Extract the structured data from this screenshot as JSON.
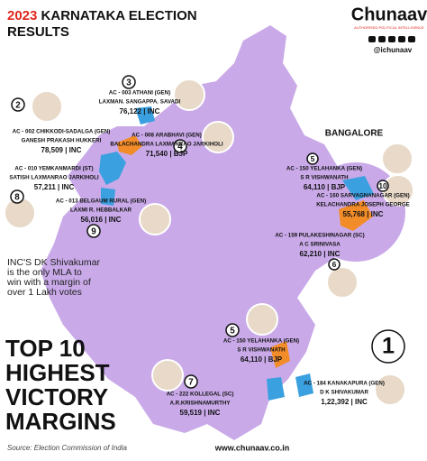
{
  "header": {
    "title_year": "2023",
    "title_lines": [
      "KARNATAKA ELECTION",
      "RESULTS"
    ],
    "brand": "Chunaav",
    "tagline": "AUTHORISED POLITICAL INTELLIGENCE",
    "handle": "@ichunaav"
  },
  "inset_label": "BANGALORE",
  "callouts": [
    {
      "rank": "3",
      "constituency": "AC - 003 ATHANI (GEN)",
      "candidate": "LAXMAN. SANGAPPA. SAVADI",
      "margin": "76,122 | INC"
    },
    {
      "rank": "2",
      "constituency": "AC - 002 CHIKKODI-SADALGA (GEN)",
      "candidate": "GANESH PRAKASH HUKKERI",
      "margin": "78,509 | INC"
    },
    {
      "rank": "4",
      "constituency": "AC - 008 ARABHAVI (GEN)",
      "candidate": "BALACHANDRA LAXMANRAO JARKIHOLI",
      "margin": "71,540 | BJP"
    },
    {
      "rank": "8",
      "constituency": "AC - 010 YEMKANMARDI (ST)",
      "candidate": "SATISH LAXMANRAO JARKIHOLI",
      "margin": "57,211 | INC"
    },
    {
      "rank": "9",
      "constituency": "AC - 013 BELGAUM RURAL (GEN)",
      "candidate": "LAXMI R. HEBBALKAR",
      "margin": "56,016 | INC"
    },
    {
      "rank": "5",
      "constituency": "AC - 150 YELAHANKA (GEN)",
      "candidate": "S R VISHWANATH",
      "margin": "64,110 | BJP"
    },
    {
      "rank": "10",
      "constituency": "AC - 160 SARVAGNANAGAR (GEN)",
      "candidate": "KELACHANDRA JOSEPH GEORGE",
      "margin": "55,768 | INC"
    },
    {
      "rank": "6",
      "constituency": "AC - 159 PULAKESHINAGAR (SC)",
      "candidate": "A C SRINIVASA",
      "margin": "62,210 | INC"
    },
    {
      "rank": "5",
      "constituency": "AC - 150 YELAHANKA (GEN)",
      "candidate": "S R VISHWANATH",
      "margin": "64,110 | BJP"
    },
    {
      "rank": "7",
      "constituency": "AC - 222 KOLLEGAL (SC)",
      "candidate": "A.R.KRISHNAMURTHY",
      "margin": "59,519 | INC"
    },
    {
      "rank": "1",
      "constituency": "AC - 184 KANAKAPURA (GEN)",
      "candidate": "D K SHIVAKUMAR",
      "margin": "1,22,392 | INC"
    }
  ],
  "note_lines": [
    "INC'S DK Shivakumar",
    "is the only MLA to",
    "win with a margin of",
    "over 1 Lakh votes"
  ],
  "big_title": [
    "TOP 10",
    "HIGHEST",
    "VICTORY",
    "MARGINS"
  ],
  "source": "Source: Election Commission of India",
  "website": "www.chunaav.co.in"
}
